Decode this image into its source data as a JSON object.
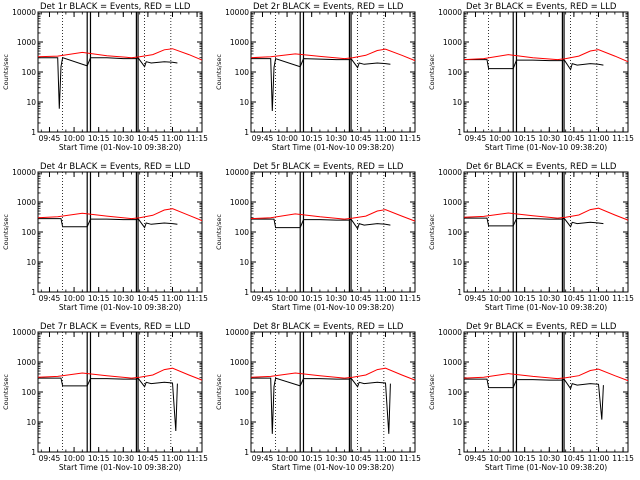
{
  "figure": {
    "background": "#ffffff",
    "panel_titles": [
      "Det 1r BLACK = Events, RED = LLD",
      "Det 2r BLACK = Events, RED = LLD",
      "Det 3r BLACK = Events, RED = LLD",
      "Det 4r BLACK = Events, RED = LLD",
      "Det 5r BLACK = Events, RED = LLD",
      "Det 6r BLACK = Events, RED = LLD",
      "Det 7r BLACK = Events, RED = LLD",
      "Det 8r BLACK = Events, RED = LLD",
      "Det 9r BLACK = Events, RED = LLD"
    ],
    "x_label": "Start Time (01-Nov-10 09:38:20)",
    "y_label": "Counts/sec",
    "x_tick_labels": [
      "09:45",
      "10:00",
      "10:15",
      "10:30",
      "10:45",
      "11:00",
      "11:15"
    ],
    "y_tick_labels": [
      "1",
      "10",
      "100",
      "1000",
      "10000"
    ],
    "colors": {
      "events": "#000000",
      "lld": "#ff0000",
      "axes": "#000000"
    }
  },
  "chart_data": [
    {
      "type": "line",
      "title": "Det 1r BLACK = Events, RED = LLD",
      "xlabel": "Start Time (01-Nov-10 09:38:20)",
      "ylabel": "Counts/sec",
      "y_scale": "log",
      "ylim": [
        1,
        10000
      ],
      "xlim": [
        "09:38",
        "11:18"
      ],
      "x_ticks": [
        "09:45",
        "10:00",
        "10:15",
        "10:30",
        "10:45",
        "11:00",
        "11:15"
      ],
      "vertical_solid_lines": [
        "10:08",
        "10:10",
        "10:38",
        "10:39"
      ],
      "vertical_dotted_lines": [
        "09:53",
        "10:43",
        "10:59"
      ],
      "series": [
        {
          "name": "Events",
          "color": "#000000",
          "x": [
            "09:38",
            "09:50",
            "09:51",
            "09:52",
            "09:53",
            "10:08",
            "10:10",
            "10:20",
            "10:30",
            "10:38",
            "10:39",
            "10:43",
            "10:44",
            "10:47",
            "10:55",
            "11:00",
            "11:03"
          ],
          "y": [
            300,
            300,
            6,
            150,
            300,
            160,
            300,
            300,
            280,
            280,
            300,
            150,
            220,
            200,
            220,
            210,
            200
          ]
        },
        {
          "name": "LLD",
          "color": "#ff0000",
          "x": [
            "09:38",
            "09:50",
            "10:05",
            "10:20",
            "10:35",
            "10:40",
            "10:48",
            "10:55",
            "11:00",
            "11:10",
            "11:18"
          ],
          "y": [
            320,
            340,
            450,
            350,
            300,
            320,
            380,
            550,
            600,
            380,
            250
          ]
        }
      ]
    },
    {
      "type": "line",
      "title": "Det 2r BLACK = Events, RED = LLD",
      "xlabel": "Start Time (01-Nov-10 09:38:20)",
      "ylabel": "Counts/sec",
      "y_scale": "log",
      "ylim": [
        1,
        10000
      ],
      "xlim": [
        "09:38",
        "11:18"
      ],
      "x_ticks": [
        "09:45",
        "10:00",
        "10:15",
        "10:30",
        "10:45",
        "11:00",
        "11:15"
      ],
      "vertical_solid_lines": [
        "10:08",
        "10:10",
        "10:38",
        "10:39"
      ],
      "vertical_dotted_lines": [
        "09:53",
        "10:43",
        "10:59"
      ],
      "series": [
        {
          "name": "Events",
          "color": "#000000",
          "x": [
            "09:38",
            "09:50",
            "09:51",
            "09:52",
            "09:53",
            "10:08",
            "10:10",
            "10:20",
            "10:30",
            "10:38",
            "10:39",
            "10:43",
            "10:44",
            "10:47",
            "10:55",
            "11:00",
            "11:03"
          ],
          "y": [
            280,
            280,
            5,
            140,
            280,
            150,
            280,
            270,
            260,
            260,
            280,
            140,
            200,
            180,
            200,
            190,
            180
          ]
        },
        {
          "name": "LLD",
          "color": "#ff0000",
          "x": [
            "09:38",
            "09:50",
            "10:05",
            "10:20",
            "10:35",
            "10:40",
            "10:48",
            "10:55",
            "11:00",
            "11:10",
            "11:18"
          ],
          "y": [
            300,
            320,
            400,
            330,
            280,
            300,
            360,
            520,
            580,
            360,
            240
          ]
        }
      ]
    },
    {
      "type": "line",
      "title": "Det 3r BLACK = Events, RED = LLD",
      "xlabel": "Start Time (01-Nov-10 09:38:20)",
      "ylabel": "Counts/sec",
      "y_scale": "log",
      "ylim": [
        1,
        10000
      ],
      "xlim": [
        "09:38",
        "11:18"
      ],
      "x_ticks": [
        "09:45",
        "10:00",
        "10:15",
        "10:30",
        "10:45",
        "11:00",
        "11:15"
      ],
      "vertical_solid_lines": [
        "10:08",
        "10:10",
        "10:38",
        "10:39"
      ],
      "vertical_dotted_lines": [
        "09:53",
        "10:43",
        "10:59"
      ],
      "series": [
        {
          "name": "Events",
          "color": "#000000",
          "x": [
            "09:38",
            "09:52",
            "09:53",
            "10:08",
            "10:10",
            "10:20",
            "10:30",
            "10:38",
            "10:39",
            "10:43",
            "10:44",
            "10:47",
            "10:55",
            "11:00",
            "11:03"
          ],
          "y": [
            260,
            260,
            130,
            130,
            250,
            250,
            240,
            240,
            260,
            120,
            190,
            170,
            190,
            180,
            170
          ]
        },
        {
          "name": "LLD",
          "color": "#ff0000",
          "x": [
            "09:38",
            "09:50",
            "10:05",
            "10:20",
            "10:35",
            "10:40",
            "10:48",
            "10:55",
            "11:00",
            "11:10",
            "11:18"
          ],
          "y": [
            260,
            280,
            380,
            300,
            260,
            280,
            340,
            500,
            560,
            340,
            220
          ]
        }
      ]
    },
    {
      "type": "line",
      "title": "Det 4r BLACK = Events, RED = LLD",
      "xlabel": "Start Time (01-Nov-10 09:38:20)",
      "ylabel": "Counts/sec",
      "y_scale": "log",
      "ylim": [
        1,
        10000
      ],
      "xlim": [
        "09:38",
        "11:18"
      ],
      "x_ticks": [
        "09:45",
        "10:00",
        "10:15",
        "10:30",
        "10:45",
        "11:00",
        "11:15"
      ],
      "vertical_solid_lines": [
        "10:08",
        "10:10",
        "10:38",
        "10:39"
      ],
      "vertical_dotted_lines": [
        "09:53",
        "10:43",
        "10:59"
      ],
      "series": [
        {
          "name": "Events",
          "color": "#000000",
          "x": [
            "09:38",
            "09:52",
            "09:53",
            "10:08",
            "10:10",
            "10:20",
            "10:30",
            "10:38",
            "10:39",
            "10:43",
            "10:44",
            "10:47",
            "10:55",
            "11:00",
            "11:03"
          ],
          "y": [
            280,
            280,
            150,
            150,
            270,
            270,
            260,
            260,
            280,
            140,
            200,
            180,
            200,
            190,
            180
          ]
        },
        {
          "name": "LLD",
          "color": "#ff0000",
          "x": [
            "09:38",
            "09:50",
            "10:05",
            "10:20",
            "10:35",
            "10:40",
            "10:48",
            "10:55",
            "11:00",
            "11:10",
            "11:18"
          ],
          "y": [
            300,
            320,
            420,
            340,
            280,
            300,
            360,
            540,
            600,
            360,
            240
          ]
        }
      ]
    },
    {
      "type": "line",
      "title": "Det 5r BLACK = Events, RED = LLD",
      "xlabel": "Start Time (01-Nov-10 09:38:20)",
      "ylabel": "Counts/sec",
      "y_scale": "log",
      "ylim": [
        1,
        10000
      ],
      "xlim": [
        "09:38",
        "11:18"
      ],
      "x_ticks": [
        "09:45",
        "10:00",
        "10:15",
        "10:30",
        "10:45",
        "11:00",
        "11:15"
      ],
      "vertical_solid_lines": [
        "10:08",
        "10:10",
        "10:38",
        "10:39"
      ],
      "vertical_dotted_lines": [
        "09:53",
        "10:43",
        "10:59"
      ],
      "series": [
        {
          "name": "Events",
          "color": "#000000",
          "x": [
            "09:38",
            "09:52",
            "09:53",
            "10:08",
            "10:10",
            "10:20",
            "10:30",
            "10:38",
            "10:39",
            "10:43",
            "10:44",
            "10:47",
            "10:55",
            "11:00",
            "11:03"
          ],
          "y": [
            270,
            270,
            140,
            140,
            260,
            260,
            250,
            250,
            270,
            130,
            190,
            170,
            190,
            180,
            170
          ]
        },
        {
          "name": "LLD",
          "color": "#ff0000",
          "x": [
            "09:38",
            "09:50",
            "10:05",
            "10:20",
            "10:35",
            "10:40",
            "10:48",
            "10:55",
            "11:00",
            "11:10",
            "11:18"
          ],
          "y": [
            280,
            300,
            400,
            320,
            270,
            290,
            340,
            500,
            560,
            340,
            230
          ]
        }
      ]
    },
    {
      "type": "line",
      "title": "Det 6r BLACK = Events, RED = LLD",
      "xlabel": "Start Time (01-Nov-10 09:38:20)",
      "ylabel": "Counts/sec",
      "y_scale": "log",
      "ylim": [
        1,
        10000
      ],
      "xlim": [
        "09:38",
        "11:18"
      ],
      "x_ticks": [
        "09:45",
        "10:00",
        "10:15",
        "10:30",
        "10:45",
        "11:00",
        "11:15"
      ],
      "vertical_solid_lines": [
        "10:08",
        "10:10",
        "10:38",
        "10:39"
      ],
      "vertical_dotted_lines": [
        "09:53",
        "10:43",
        "10:59"
      ],
      "series": [
        {
          "name": "Events",
          "color": "#000000",
          "x": [
            "09:38",
            "09:52",
            "09:53",
            "10:08",
            "10:10",
            "10:20",
            "10:30",
            "10:38",
            "10:39",
            "10:43",
            "10:44",
            "10:47",
            "10:55",
            "11:00",
            "11:03"
          ],
          "y": [
            290,
            290,
            160,
            160,
            280,
            280,
            270,
            270,
            290,
            150,
            210,
            190,
            210,
            200,
            190
          ]
        },
        {
          "name": "LLD",
          "color": "#ff0000",
          "x": [
            "09:38",
            "09:50",
            "10:05",
            "10:20",
            "10:35",
            "10:40",
            "10:48",
            "10:55",
            "11:00",
            "11:10",
            "11:18"
          ],
          "y": [
            310,
            330,
            430,
            350,
            290,
            310,
            370,
            560,
            620,
            370,
            250
          ]
        }
      ]
    },
    {
      "type": "line",
      "title": "Det 7r BLACK = Events, RED = LLD",
      "xlabel": "Start Time (01-Nov-10 09:38:20)",
      "ylabel": "Counts/sec",
      "y_scale": "log",
      "ylim": [
        1,
        10000
      ],
      "xlim": [
        "09:38",
        "11:18"
      ],
      "x_ticks": [
        "09:45",
        "10:00",
        "10:15",
        "10:30",
        "10:45",
        "11:00",
        "11:15"
      ],
      "vertical_solid_lines": [
        "10:08",
        "10:10",
        "10:38",
        "10:39"
      ],
      "vertical_dotted_lines": [
        "09:53",
        "10:43",
        "10:59"
      ],
      "series": [
        {
          "name": "Events",
          "color": "#000000",
          "x": [
            "09:38",
            "09:52",
            "09:53",
            "10:08",
            "10:10",
            "10:20",
            "10:30",
            "10:38",
            "10:39",
            "10:43",
            "10:44",
            "10:47",
            "10:55",
            "11:00",
            "11:02",
            "11:03"
          ],
          "y": [
            290,
            290,
            160,
            160,
            280,
            280,
            270,
            270,
            290,
            150,
            210,
            190,
            210,
            200,
            5,
            190
          ]
        },
        {
          "name": "LLD",
          "color": "#ff0000",
          "x": [
            "09:38",
            "09:50",
            "10:05",
            "10:20",
            "10:35",
            "10:40",
            "10:48",
            "10:55",
            "11:00",
            "11:10",
            "11:18"
          ],
          "y": [
            310,
            330,
            430,
            350,
            290,
            310,
            370,
            560,
            620,
            370,
            250
          ]
        }
      ]
    },
    {
      "type": "line",
      "title": "Det 8r BLACK = Events, RED = LLD",
      "xlabel": "Start Time (01-Nov-10 09:38:20)",
      "ylabel": "Counts/sec",
      "y_scale": "log",
      "ylim": [
        1,
        10000
      ],
      "xlim": [
        "09:38",
        "11:18"
      ],
      "x_ticks": [
        "09:45",
        "10:00",
        "10:15",
        "10:30",
        "10:45",
        "11:00",
        "11:15"
      ],
      "vertical_solid_lines": [
        "10:08",
        "10:10",
        "10:38",
        "10:39"
      ],
      "vertical_dotted_lines": [
        "09:53",
        "10:43",
        "10:59"
      ],
      "series": [
        {
          "name": "Events",
          "color": "#000000",
          "x": [
            "09:38",
            "09:50",
            "09:51",
            "09:52",
            "09:53",
            "10:08",
            "10:10",
            "10:20",
            "10:30",
            "10:38",
            "10:39",
            "10:43",
            "10:44",
            "10:47",
            "10:55",
            "11:00",
            "11:02",
            "11:03"
          ],
          "y": [
            290,
            290,
            4,
            150,
            290,
            160,
            280,
            280,
            270,
            270,
            290,
            150,
            210,
            190,
            210,
            200,
            4,
            190
          ]
        },
        {
          "name": "LLD",
          "color": "#ff0000",
          "x": [
            "09:38",
            "09:50",
            "10:05",
            "10:20",
            "10:35",
            "10:40",
            "10:48",
            "10:55",
            "11:00",
            "11:10",
            "11:18"
          ],
          "y": [
            310,
            330,
            430,
            350,
            290,
            310,
            370,
            560,
            620,
            370,
            250
          ]
        }
      ]
    },
    {
      "type": "line",
      "title": "Det 9r BLACK = Events, RED = LLD",
      "xlabel": "Start Time (01-Nov-10 09:38:20)",
      "ylabel": "Counts/sec",
      "y_scale": "log",
      "ylim": [
        1,
        10000
      ],
      "xlim": [
        "09:38",
        "11:18"
      ],
      "x_ticks": [
        "09:45",
        "10:00",
        "10:15",
        "10:30",
        "10:45",
        "11:00",
        "11:15"
      ],
      "vertical_solid_lines": [
        "10:08",
        "10:10",
        "10:38",
        "10:39"
      ],
      "vertical_dotted_lines": [
        "09:53",
        "10:43",
        "10:59"
      ],
      "series": [
        {
          "name": "Events",
          "color": "#000000",
          "x": [
            "09:38",
            "09:52",
            "09:53",
            "10:08",
            "10:10",
            "10:20",
            "10:30",
            "10:38",
            "10:39",
            "10:43",
            "10:44",
            "10:47",
            "10:55",
            "11:00",
            "11:02",
            "11:03"
          ],
          "y": [
            270,
            270,
            140,
            140,
            260,
            260,
            250,
            250,
            270,
            130,
            190,
            170,
            190,
            180,
            12,
            170
          ]
        },
        {
          "name": "LLD",
          "color": "#ff0000",
          "x": [
            "09:38",
            "09:50",
            "10:05",
            "10:20",
            "10:35",
            "10:40",
            "10:48",
            "10:55",
            "11:00",
            "11:10",
            "11:18"
          ],
          "y": [
            290,
            310,
            410,
            330,
            280,
            300,
            350,
            520,
            580,
            350,
            240
          ]
        }
      ]
    }
  ]
}
